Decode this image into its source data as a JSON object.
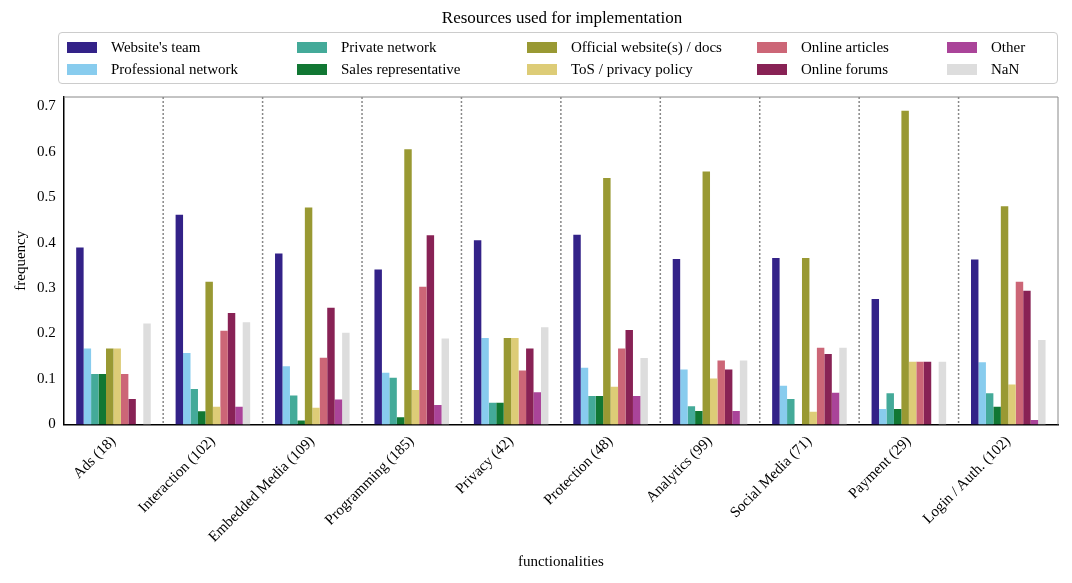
{
  "chart_data": {
    "type": "bar",
    "title": "Resources used for implementation",
    "xlabel": "functionalities",
    "ylabel": "frequency",
    "categories": [
      "Ads (18)",
      "Interaction (102)",
      "Embedded Media (109)",
      "Programming (185)",
      "Privacy (42)",
      "Protection (48)",
      "Analytics (99)",
      "Social Media (71)",
      "Payment (29)",
      "Login / Auth. (102)"
    ],
    "series": [
      {
        "name": "Website's team",
        "color": "#332288",
        "values": [
          0.389,
          0.461,
          0.376,
          0.341,
          0.405,
          0.417,
          0.364,
          0.366,
          0.276,
          0.363
        ]
      },
      {
        "name": "Professional network",
        "color": "#88ccee",
        "values": [
          0.167,
          0.157,
          0.128,
          0.114,
          0.19,
          0.125,
          0.121,
          0.085,
          0.034,
          0.137
        ]
      },
      {
        "name": "Private network",
        "color": "#44aa99",
        "values": [
          0.111,
          0.078,
          0.064,
          0.103,
          0.048,
          0.063,
          0.04,
          0.056,
          0.069,
          0.069
        ]
      },
      {
        "name": "Sales representative",
        "color": "#117733",
        "values": [
          0.111,
          0.029,
          0.009,
          0.016,
          0.048,
          0.063,
          0.03,
          0,
          0.034,
          0.039
        ]
      },
      {
        "name": "Official website(s) / docs",
        "color": "#999933",
        "values": [
          0.167,
          0.314,
          0.477,
          0.605,
          0.19,
          0.542,
          0.556,
          0.366,
          0.69,
          0.48
        ]
      },
      {
        "name": "ToS / privacy policy",
        "color": "#ddcc77",
        "values": [
          0.167,
          0.039,
          0.037,
          0.076,
          0.19,
          0.083,
          0.101,
          0.028,
          0.138,
          0.088
        ]
      },
      {
        "name": "Online articles",
        "color": "#cc6677",
        "values": [
          0.111,
          0.206,
          0.147,
          0.303,
          0.119,
          0.167,
          0.141,
          0.169,
          0.138,
          0.314
        ]
      },
      {
        "name": "Online forums",
        "color": "#882255",
        "values": [
          0.056,
          0.245,
          0.257,
          0.416,
          0.167,
          0.208,
          0.121,
          0.155,
          0.138,
          0.294
        ]
      },
      {
        "name": "Other",
        "color": "#aa4499",
        "values": [
          0,
          0.039,
          0.055,
          0.043,
          0.071,
          0.063,
          0.03,
          0.07,
          0,
          0.01
        ]
      },
      {
        "name": "NaN",
        "color": "#dddddd",
        "values": [
          0.222,
          0.225,
          0.202,
          0.189,
          0.214,
          0.146,
          0.141,
          0.169,
          0.138,
          0.186
        ]
      }
    ],
    "ylim": [
      0,
      0.72
    ],
    "yticks": [
      0,
      0.1,
      0.2,
      0.3,
      0.4,
      0.5,
      0.6,
      0.7
    ],
    "legend": "top"
  }
}
